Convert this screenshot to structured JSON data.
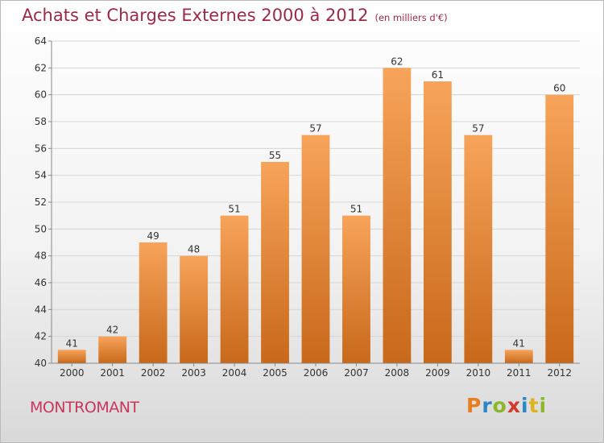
{
  "header": {
    "title": "Achats et Charges Externes 2000 à 2012",
    "subtitle": "(en milliers d'€)"
  },
  "footer": {
    "location": "MONTROMANT",
    "brand_letters": [
      "P",
      "r",
      "o",
      "x",
      "i",
      "t",
      "i"
    ],
    "brand_colors": [
      "#e87d1e",
      "#2a86c8",
      "#8bb82a",
      "#d23a2a",
      "#2a86c8",
      "#e0b21e",
      "#8bb82a"
    ]
  },
  "chart_data": {
    "type": "bar",
    "categories": [
      "2000",
      "2001",
      "2002",
      "2003",
      "2004",
      "2005",
      "2006",
      "2007",
      "2008",
      "2009",
      "2010",
      "2011",
      "2012"
    ],
    "values": [
      41,
      42,
      49,
      48,
      51,
      55,
      57,
      51,
      62,
      61,
      57,
      41,
      60
    ],
    "ylim": [
      40,
      64
    ],
    "yticks": [
      40,
      42,
      44,
      46,
      48,
      50,
      52,
      54,
      56,
      58,
      60,
      62,
      64
    ],
    "grid": true,
    "bar_color_top": "#f7a45a",
    "bar_color_bottom": "#c8681a"
  }
}
